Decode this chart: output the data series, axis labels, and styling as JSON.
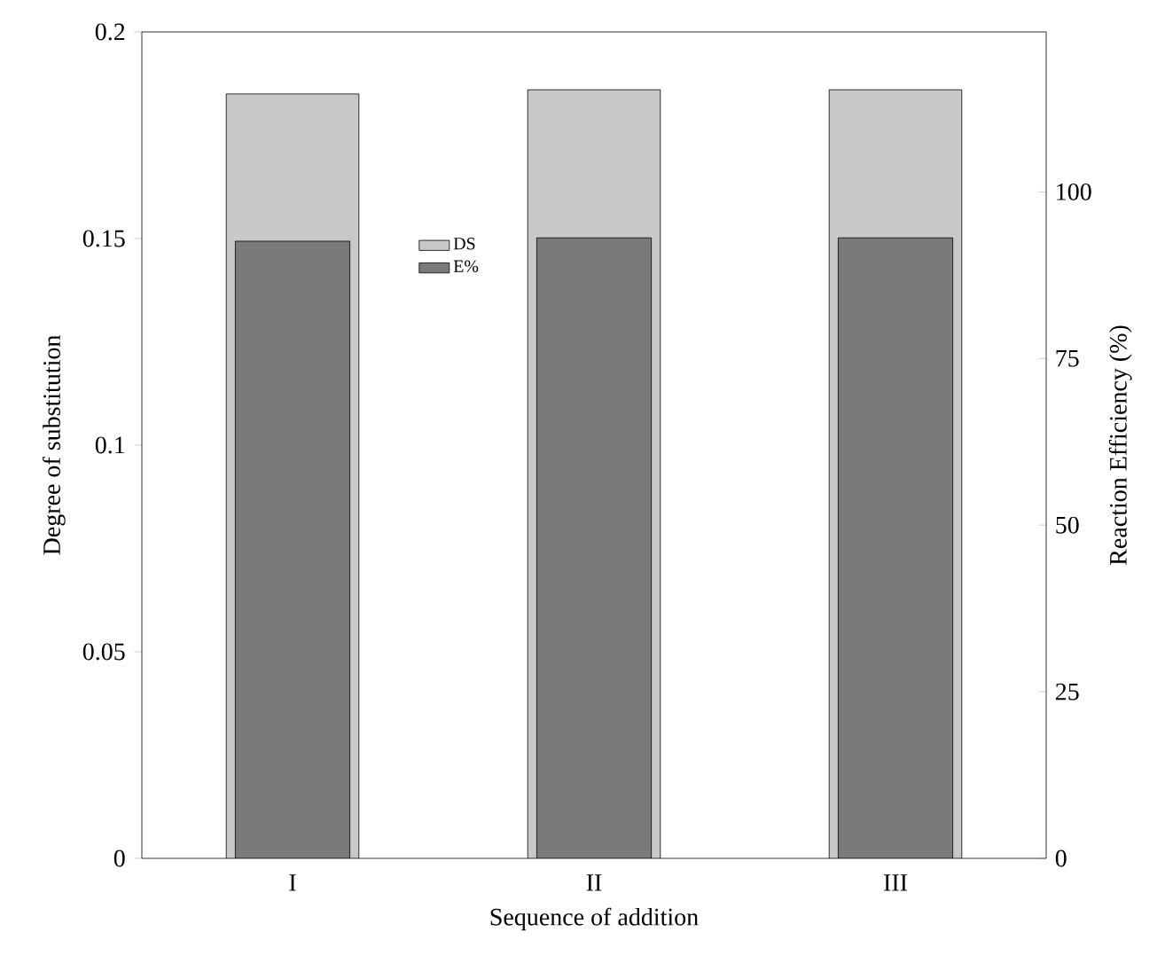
{
  "chart_data": {
    "type": "bar",
    "xlabel": "Sequence of addition",
    "ylabel": "Degree of substitution",
    "y2label": "Reaction Efficiency (%)",
    "categories": [
      "I",
      "II",
      "III"
    ],
    "series": [
      {
        "name": "DS",
        "color": "#c8c8c8",
        "values": [
          0.185,
          0.186,
          0.186
        ]
      },
      {
        "name": "E%",
        "color": "#7a7a7a",
        "axis": "y2",
        "values": [
          92.6,
          93.1,
          93.1
        ]
      }
    ],
    "ylim": [
      0,
      0.2
    ],
    "yticks": [
      0,
      0.05,
      0.1,
      0.15,
      0.2
    ],
    "y2lim": [
      0,
      124
    ],
    "y2ticks": [
      0,
      25,
      50,
      75,
      100
    ],
    "grid": false,
    "legend": "top left"
  }
}
